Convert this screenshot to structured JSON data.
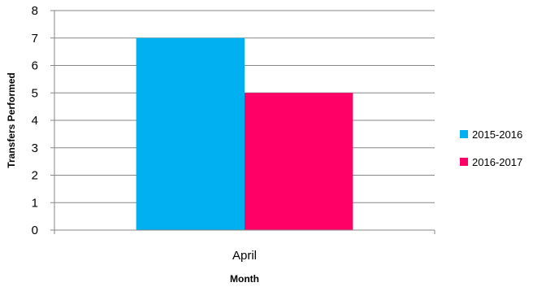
{
  "chart_data": {
    "type": "bar",
    "title": "",
    "xlabel": "Month",
    "ylabel": "Transfers Performed",
    "categories": [
      "April"
    ],
    "series": [
      {
        "name": "2015-2016",
        "values": [
          7
        ],
        "color": "#00B0F0"
      },
      {
        "name": "2016-2017",
        "values": [
          5
        ],
        "color": "#FF0066"
      }
    ],
    "ylim": [
      0,
      8
    ],
    "yticks": [
      "0",
      "1",
      "2",
      "3",
      "4",
      "5",
      "6",
      "7",
      "8"
    ],
    "grid": true,
    "legend_position": "right"
  }
}
